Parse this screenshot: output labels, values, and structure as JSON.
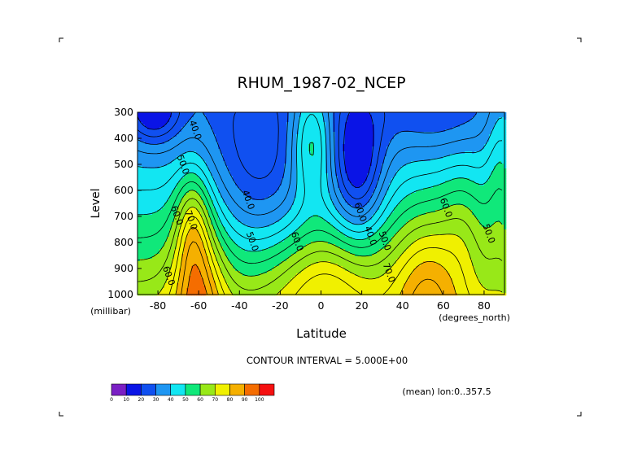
{
  "chart_data": {
    "type": "heatmap",
    "title": "RHUM_1987-02_NCEP",
    "xlabel": "Latitude",
    "ylabel": "Level",
    "x_units": "(degrees_north)",
    "y_units": "(millibar)",
    "xlim": [
      -90,
      90
    ],
    "ylim": [
      1000,
      300
    ],
    "x_ticks": [
      -80,
      -60,
      -40,
      -20,
      0,
      20,
      40,
      60,
      80
    ],
    "x_tick_labels": [
      "-80",
      "-60",
      "-40",
      "-20",
      "0",
      "20",
      "40",
      "60",
      "80"
    ],
    "y_ticks": [
      300,
      400,
      500,
      600,
      700,
      800,
      900,
      1000
    ],
    "y_tick_labels": [
      "300",
      "400",
      "500",
      "600",
      "700",
      "800",
      "900",
      "1000"
    ],
    "contour_interval_text": "CONTOUR INTERVAL = 5.000E+00",
    "mean_text": "(mean) lon:0..357.5",
    "colorbar": {
      "levels": [
        0,
        10,
        20,
        30,
        40,
        50,
        60,
        70,
        80,
        90,
        100
      ],
      "level_labels": [
        "0",
        "10",
        "20",
        "30",
        "40",
        "50",
        "60",
        "70",
        "80",
        "90",
        "100"
      ],
      "colors": [
        "#7a1fc4",
        "#0a14e6",
        "#1050f0",
        "#1e96f2",
        "#12e6f2",
        "#10e87a",
        "#98e818",
        "#f0f000",
        "#f5b000",
        "#f56d00",
        "#f51010"
      ]
    },
    "contour_labels": [
      {
        "text": "40.0",
        "lat": -63,
        "lev": 372
      },
      {
        "text": "50.0",
        "lat": -69,
        "lev": 505
      },
      {
        "text": "60.0",
        "lat": -72,
        "lev": 700
      },
      {
        "text": "70.0",
        "lat": -65,
        "lev": 718
      },
      {
        "text": "60.0",
        "lat": -76,
        "lev": 932
      },
      {
        "text": "40.0",
        "lat": -37,
        "lev": 640
      },
      {
        "text": "50.0",
        "lat": -35,
        "lev": 800
      },
      {
        "text": "60.0",
        "lat": -13,
        "lev": 800
      },
      {
        "text": "60.0",
        "lat": 18,
        "lev": 687
      },
      {
        "text": "40.0",
        "lat": 23,
        "lev": 778
      },
      {
        "text": "50.0",
        "lat": 30,
        "lev": 798
      },
      {
        "text": "70.0",
        "lat": 32,
        "lev": 920
      },
      {
        "text": "60.0",
        "lat": 60,
        "lev": 670
      },
      {
        "text": "50.0",
        "lat": 81,
        "lev": 770
      }
    ],
    "field_description": "zonal-mean relative humidity (%) by latitude and pressure level",
    "features": [
      {
        "lat": -60,
        "lev": 950,
        "value": 92
      },
      {
        "lat": -30,
        "lev": 550,
        "value": 35
      },
      {
        "lat": 18,
        "lev": 480,
        "value": 17
      },
      {
        "lat": 5,
        "lev": 930,
        "value": 78
      },
      {
        "lat": 55,
        "lev": 950,
        "value": 82
      },
      {
        "lat": -80,
        "lev": 320,
        "value": 15
      },
      {
        "lat": 60,
        "lev": 400,
        "value": 35
      },
      {
        "lat": 90,
        "lev": 450,
        "value": 45
      }
    ]
  }
}
